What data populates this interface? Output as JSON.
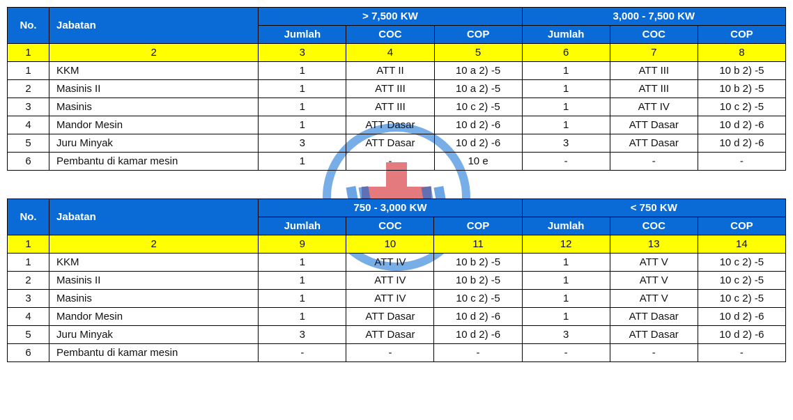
{
  "colors": {
    "header_bg": "#0a6bd6",
    "header_fg": "#ffffff",
    "index_row_bg": "#ffff00",
    "border": "#000000",
    "logo_blue": "#0a6bd6",
    "logo_red": "#d4222a"
  },
  "headers": {
    "no": "No.",
    "jabatan": "Jabatan",
    "jumlah": "Jumlah",
    "coc": "COC",
    "cop": "COP"
  },
  "table1": {
    "groupA_title": "> 7,500 KW",
    "groupB_title": "3,000 - 7,500 KW",
    "index_row": [
      "1",
      "2",
      "3",
      "4",
      "5",
      "6",
      "7",
      "8"
    ],
    "rows": [
      {
        "no": "1",
        "jab": "KKM",
        "a": [
          "1",
          "ATT II",
          "10 a 2) -5"
        ],
        "b": [
          "1",
          "ATT III",
          "10 b 2) -5"
        ]
      },
      {
        "no": "2",
        "jab": "Masinis II",
        "a": [
          "1",
          "ATT III",
          "10 a 2) -5"
        ],
        "b": [
          "1",
          "ATT III",
          "10 b 2) -5"
        ]
      },
      {
        "no": "3",
        "jab": "Masinis",
        "a": [
          "1",
          "ATT III",
          "10 c 2) -5"
        ],
        "b": [
          "1",
          "ATT IV",
          "10 c 2) -5"
        ]
      },
      {
        "no": "4",
        "jab": "Mandor Mesin",
        "a": [
          "1",
          "ATT Dasar",
          "10 d 2) -6"
        ],
        "b": [
          "1",
          "ATT Dasar",
          "10 d 2) -6"
        ]
      },
      {
        "no": "5",
        "jab": "Juru Minyak",
        "a": [
          "3",
          "ATT Dasar",
          "10 d 2) -6"
        ],
        "b": [
          "3",
          "ATT Dasar",
          "10 d 2) -6"
        ]
      },
      {
        "no": "6",
        "jab": "Pembantu di kamar mesin",
        "a": [
          "1",
          "-",
          "10 e"
        ],
        "b": [
          "-",
          "-",
          "-"
        ]
      }
    ]
  },
  "table2": {
    "groupA_title": "750 - 3,000 KW",
    "groupB_title": "< 750 KW",
    "index_row": [
      "1",
      "2",
      "9",
      "10",
      "11",
      "12",
      "13",
      "14"
    ],
    "rows": [
      {
        "no": "1",
        "jab": "KKM",
        "a": [
          "1",
          "ATT IV",
          "10 b 2) -5"
        ],
        "b": [
          "1",
          "ATT V",
          "10 c 2) -5"
        ]
      },
      {
        "no": "2",
        "jab": "Masinis II",
        "a": [
          "1",
          "ATT IV",
          "10 b 2) -5"
        ],
        "b": [
          "1",
          "ATT V",
          "10 c 2) -5"
        ]
      },
      {
        "no": "3",
        "jab": "Masinis",
        "a": [
          "1",
          "ATT IV",
          "10 c 2) -5"
        ],
        "b": [
          "1",
          "ATT V",
          "10 c 2) -5"
        ]
      },
      {
        "no": "4",
        "jab": "Mandor Mesin",
        "a": [
          "1",
          "ATT Dasar",
          "10 d 2) -6"
        ],
        "b": [
          "1",
          "ATT Dasar",
          "10 d 2) -6"
        ]
      },
      {
        "no": "5",
        "jab": "Juru Minyak",
        "a": [
          "3",
          "ATT Dasar",
          "10 d 2) -6"
        ],
        "b": [
          "3",
          "ATT Dasar",
          "10 d 2) -6"
        ]
      },
      {
        "no": "6",
        "jab": "Pembantu di kamar mesin",
        "a": [
          "-",
          "-",
          "-"
        ],
        "b": [
          "-",
          "-",
          "-"
        ]
      }
    ]
  }
}
